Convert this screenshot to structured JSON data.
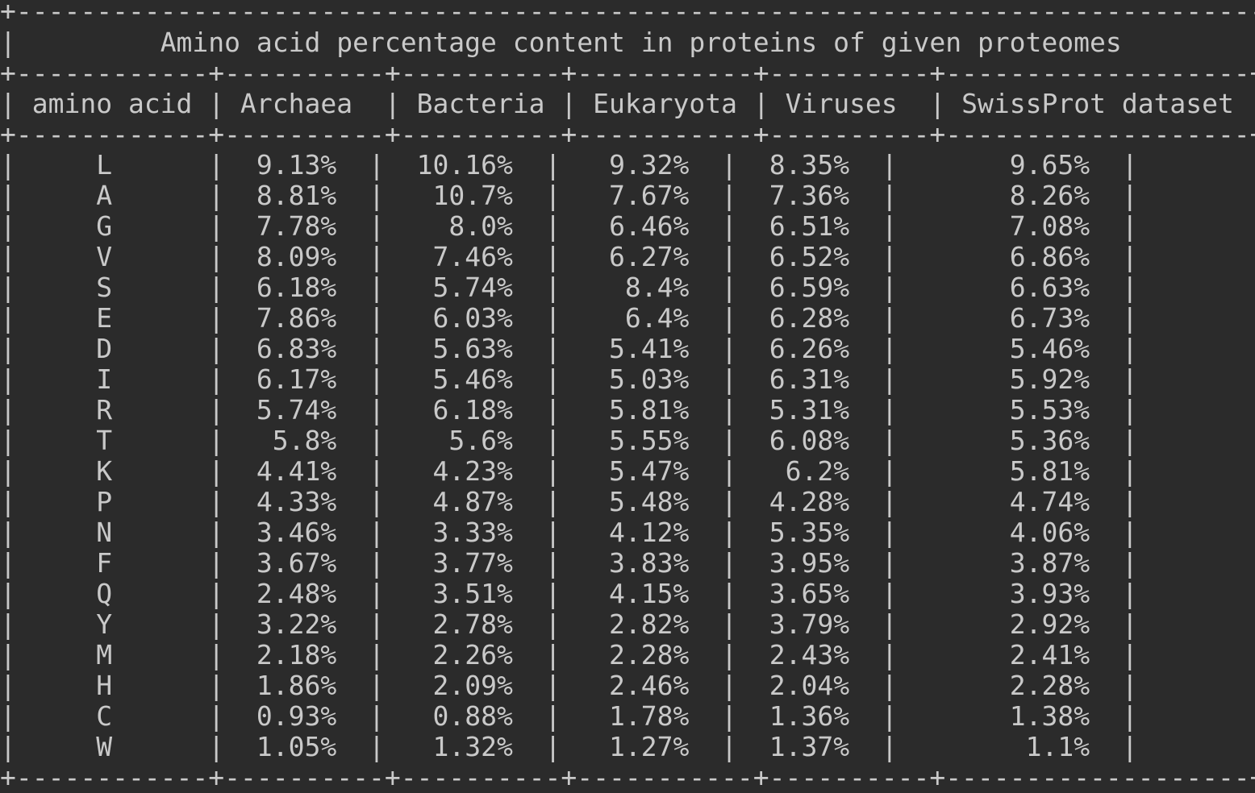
{
  "table": {
    "title": "Amino acid percentage content in proteins of given proteomes",
    "columns": [
      "amino acid",
      "Archaea",
      "Bacteria",
      "Eukaryota",
      "Viruses",
      "SwissProt dataset"
    ],
    "rows": [
      {
        "amino_acid": "L",
        "archaea": "9.13%",
        "bacteria": "10.16%",
        "eukaryota": "9.32%",
        "viruses": "8.35%",
        "swissprot": "9.65%"
      },
      {
        "amino_acid": "A",
        "archaea": "8.81%",
        "bacteria": "10.7%",
        "eukaryota": "7.67%",
        "viruses": "7.36%",
        "swissprot": "8.26%"
      },
      {
        "amino_acid": "G",
        "archaea": "7.78%",
        "bacteria": "8.0%",
        "eukaryota": "6.46%",
        "viruses": "6.51%",
        "swissprot": "7.08%"
      },
      {
        "amino_acid": "V",
        "archaea": "8.09%",
        "bacteria": "7.46%",
        "eukaryota": "6.27%",
        "viruses": "6.52%",
        "swissprot": "6.86%"
      },
      {
        "amino_acid": "S",
        "archaea": "6.18%",
        "bacteria": "5.74%",
        "eukaryota": "8.4%",
        "viruses": "6.59%",
        "swissprot": "6.63%"
      },
      {
        "amino_acid": "E",
        "archaea": "7.86%",
        "bacteria": "6.03%",
        "eukaryota": "6.4%",
        "viruses": "6.28%",
        "swissprot": "6.73%"
      },
      {
        "amino_acid": "D",
        "archaea": "6.83%",
        "bacteria": "5.63%",
        "eukaryota": "5.41%",
        "viruses": "6.26%",
        "swissprot": "5.46%"
      },
      {
        "amino_acid": "I",
        "archaea": "6.17%",
        "bacteria": "5.46%",
        "eukaryota": "5.03%",
        "viruses": "6.31%",
        "swissprot": "5.92%"
      },
      {
        "amino_acid": "R",
        "archaea": "5.74%",
        "bacteria": "6.18%",
        "eukaryota": "5.81%",
        "viruses": "5.31%",
        "swissprot": "5.53%"
      },
      {
        "amino_acid": "T",
        "archaea": "5.8%",
        "bacteria": "5.6%",
        "eukaryota": "5.55%",
        "viruses": "6.08%",
        "swissprot": "5.36%"
      },
      {
        "amino_acid": "K",
        "archaea": "4.41%",
        "bacteria": "4.23%",
        "eukaryota": "5.47%",
        "viruses": "6.2%",
        "swissprot": "5.81%"
      },
      {
        "amino_acid": "P",
        "archaea": "4.33%",
        "bacteria": "4.87%",
        "eukaryota": "5.48%",
        "viruses": "4.28%",
        "swissprot": "4.74%"
      },
      {
        "amino_acid": "N",
        "archaea": "3.46%",
        "bacteria": "3.33%",
        "eukaryota": "4.12%",
        "viruses": "5.35%",
        "swissprot": "4.06%"
      },
      {
        "amino_acid": "F",
        "archaea": "3.67%",
        "bacteria": "3.77%",
        "eukaryota": "3.83%",
        "viruses": "3.95%",
        "swissprot": "3.87%"
      },
      {
        "amino_acid": "Q",
        "archaea": "2.48%",
        "bacteria": "3.51%",
        "eukaryota": "4.15%",
        "viruses": "3.65%",
        "swissprot": "3.93%"
      },
      {
        "amino_acid": "Y",
        "archaea": "3.22%",
        "bacteria": "2.78%",
        "eukaryota": "2.82%",
        "viruses": "3.79%",
        "swissprot": "2.92%"
      },
      {
        "amino_acid": "M",
        "archaea": "2.18%",
        "bacteria": "2.26%",
        "eukaryota": "2.28%",
        "viruses": "2.43%",
        "swissprot": "2.41%"
      },
      {
        "amino_acid": "H",
        "archaea": "1.86%",
        "bacteria": "2.09%",
        "eukaryota": "2.46%",
        "viruses": "2.04%",
        "swissprot": "2.28%"
      },
      {
        "amino_acid": "C",
        "archaea": "0.93%",
        "bacteria": "0.88%",
        "eukaryota": "1.78%",
        "viruses": "1.36%",
        "swissprot": "1.38%"
      },
      {
        "amino_acid": "W",
        "archaea": "1.05%",
        "bacteria": "1.32%",
        "eukaryota": "1.27%",
        "viruses": "1.37%",
        "swissprot": "1.1%"
      }
    ]
  },
  "colors": {
    "background": "#2b2b2b",
    "text": "#c9c9c9"
  }
}
